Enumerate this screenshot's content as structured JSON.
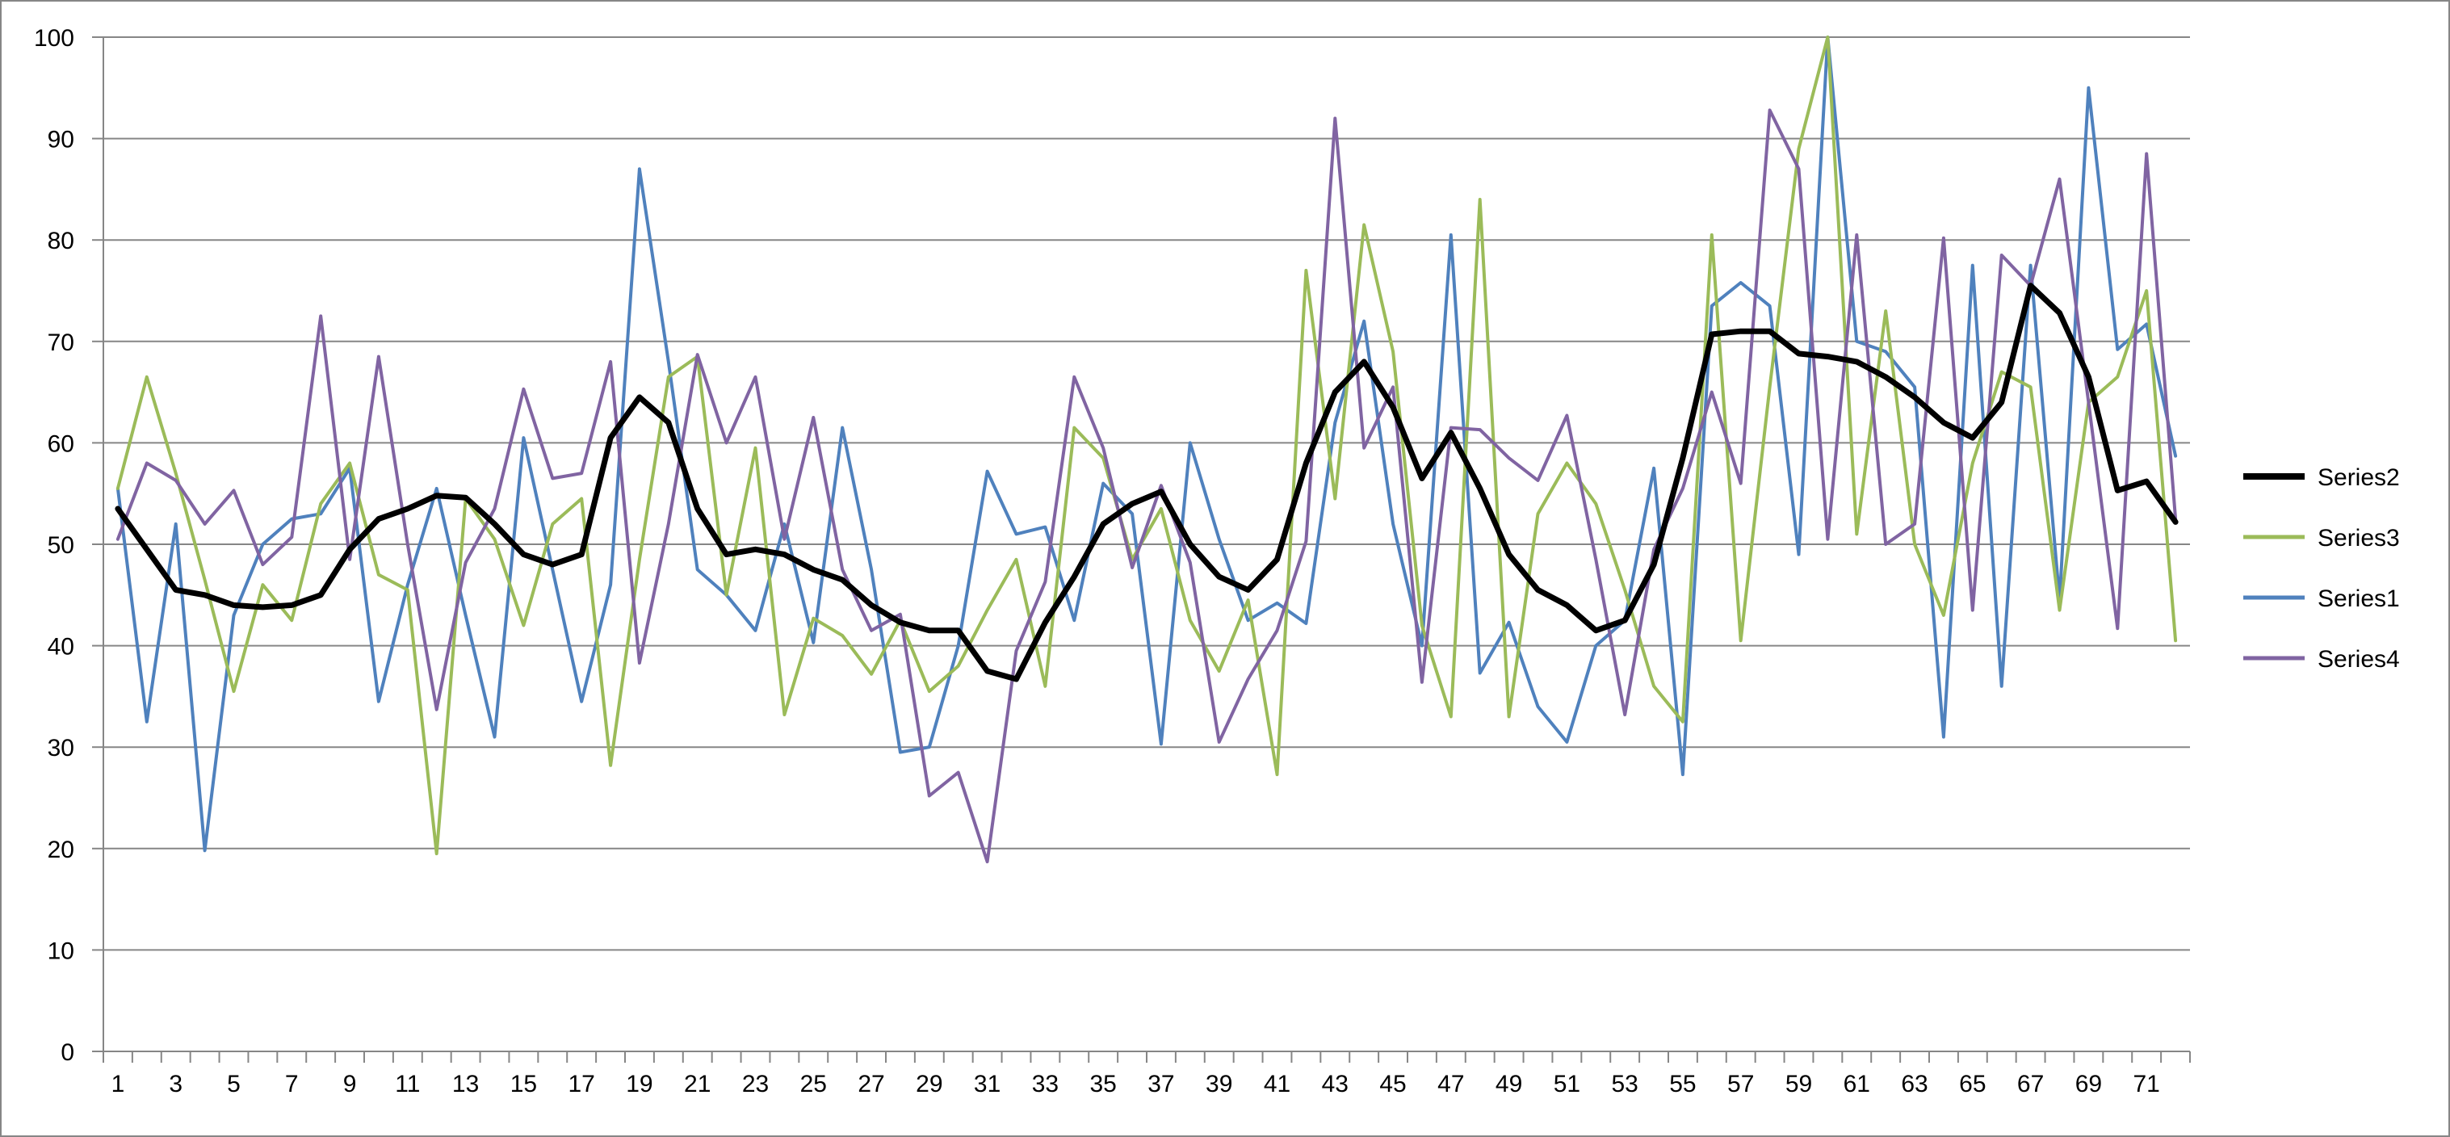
{
  "chart_data": {
    "type": "line",
    "title": "",
    "xlabel": "",
    "ylabel": "",
    "ylim": [
      0,
      100
    ],
    "yticks": [
      0,
      10,
      20,
      30,
      40,
      50,
      60,
      70,
      80,
      90,
      100
    ],
    "x": [
      1,
      2,
      3,
      4,
      5,
      6,
      7,
      8,
      9,
      10,
      11,
      12,
      13,
      14,
      15,
      16,
      17,
      18,
      19,
      20,
      21,
      22,
      23,
      24,
      25,
      26,
      27,
      28,
      29,
      30,
      31,
      32,
      33,
      34,
      35,
      36,
      37,
      38,
      39,
      40,
      41,
      42,
      43,
      44,
      45,
      46,
      47,
      48,
      49,
      50,
      51,
      52,
      53,
      54,
      55,
      56,
      57,
      58,
      59,
      60,
      61,
      62,
      63,
      64,
      65,
      66,
      67,
      68,
      69,
      70,
      71,
      72
    ],
    "xtick_labels": [
      "1",
      "3",
      "5",
      "7",
      "9",
      "11",
      "13",
      "15",
      "17",
      "19",
      "21",
      "23",
      "25",
      "27",
      "29",
      "31",
      "33",
      "35",
      "37",
      "39",
      "41",
      "43",
      "45",
      "47",
      "49",
      "51",
      "53",
      "55",
      "57",
      "59",
      "61",
      "63",
      "65",
      "67",
      "69",
      "71"
    ],
    "grid": true,
    "legend_position": "right",
    "series": [
      {
        "name": "Series2",
        "color": "#000000",
        "width": 7,
        "values": [
          53.5,
          49.5,
          45.5,
          45,
          44,
          43.8,
          44,
          45,
          49.5,
          52.5,
          53.5,
          54.8,
          54.6,
          52,
          49,
          48,
          49,
          60.5,
          64.5,
          62,
          53.5,
          49,
          49.5,
          49,
          47.5,
          46.5,
          44,
          42.3,
          41.5,
          41.5,
          37.5,
          36.7,
          42.3,
          46.8,
          52,
          54,
          55.2,
          50,
          46.8,
          45.5,
          48.5,
          58,
          65,
          68,
          63.5,
          56.5,
          61,
          55.5,
          49,
          45.5,
          44,
          41.5,
          42.5,
          48,
          58.5,
          70.7,
          71,
          71,
          68.8,
          68.5,
          68,
          66.5,
          64.5,
          62,
          60.5,
          64,
          75.5,
          72.8,
          66.5,
          55.3,
          56.2,
          52.2
        ]
      },
      {
        "name": "Series3",
        "color": "#9BBB59",
        "width": 4,
        "values": [
          55.5,
          66.5,
          57,
          46.5,
          35.5,
          46,
          42.5,
          54,
          58,
          47,
          45.5,
          19.5,
          54.5,
          50.5,
          42,
          52,
          54.5,
          28.2,
          48.5,
          66.5,
          68.5,
          45,
          59.5,
          33.2,
          42.7,
          41,
          37.2,
          42.5,
          35.5,
          38,
          43.5,
          48.5,
          36,
          61.5,
          58.5,
          48.5,
          53.5,
          42.5,
          37.5,
          44.5,
          27.3,
          77,
          54.5,
          81.5,
          69,
          42,
          33,
          84,
          33,
          53,
          58,
          54,
          45.5,
          36,
          32.5,
          80.5,
          40.5,
          65.5,
          89,
          100,
          51,
          73,
          50,
          43,
          58,
          67,
          65.5,
          43.5,
          64,
          66.5,
          75,
          40.5
        ]
      },
      {
        "name": "Series1",
        "color": "#4F81BD",
        "width": 4,
        "values": [
          55.5,
          32.5,
          52,
          19.8,
          43,
          50,
          52.5,
          53,
          57.5,
          34.5,
          46,
          55.5,
          43,
          31,
          60.5,
          47.5,
          34.5,
          46,
          87,
          68,
          47.5,
          45,
          41.5,
          52,
          40.3,
          61.5,
          47.5,
          29.5,
          30,
          40,
          57.2,
          51,
          51.7,
          42.5,
          56,
          53,
          30.3,
          60,
          50.5,
          42.5,
          44.2,
          42.2,
          62,
          72,
          52,
          40,
          80.5,
          37.3,
          42.3,
          34,
          30.5,
          40,
          42.5,
          57.5,
          27.3,
          73.5,
          75.8,
          73.5,
          49,
          100,
          70,
          69,
          65.5,
          31,
          77.5,
          36,
          77.5,
          44.5,
          95,
          69.2,
          71.7,
          58.7
        ]
      },
      {
        "name": "Series4",
        "color": "#8064A2",
        "width": 4,
        "values": [
          50.5,
          58,
          56.3,
          52,
          55.3,
          48,
          50.7,
          72.5,
          48.5,
          68.5,
          50,
          33.7,
          48.2,
          53.5,
          65.3,
          56.5,
          57,
          68,
          38.3,
          52,
          68.7,
          60,
          66.5,
          50.5,
          62.5,
          47.5,
          41.5,
          43.1,
          25.2,
          27.5,
          18.7,
          39.5,
          46.3,
          66.5,
          59.5,
          47.7,
          55.8,
          48.2,
          30.5,
          36.7,
          41.5,
          50.3,
          92,
          59.5,
          65.5,
          36.4,
          61.5,
          61.3,
          58.5,
          56.3,
          62.7,
          48.5,
          33.2,
          49.5,
          55.5,
          65,
          56,
          92.8,
          87,
          50.5,
          80.5,
          50,
          52,
          80.2,
          43.5,
          78.5,
          75.5,
          86,
          64,
          41.7,
          88.5,
          52.5
        ]
      }
    ]
  }
}
